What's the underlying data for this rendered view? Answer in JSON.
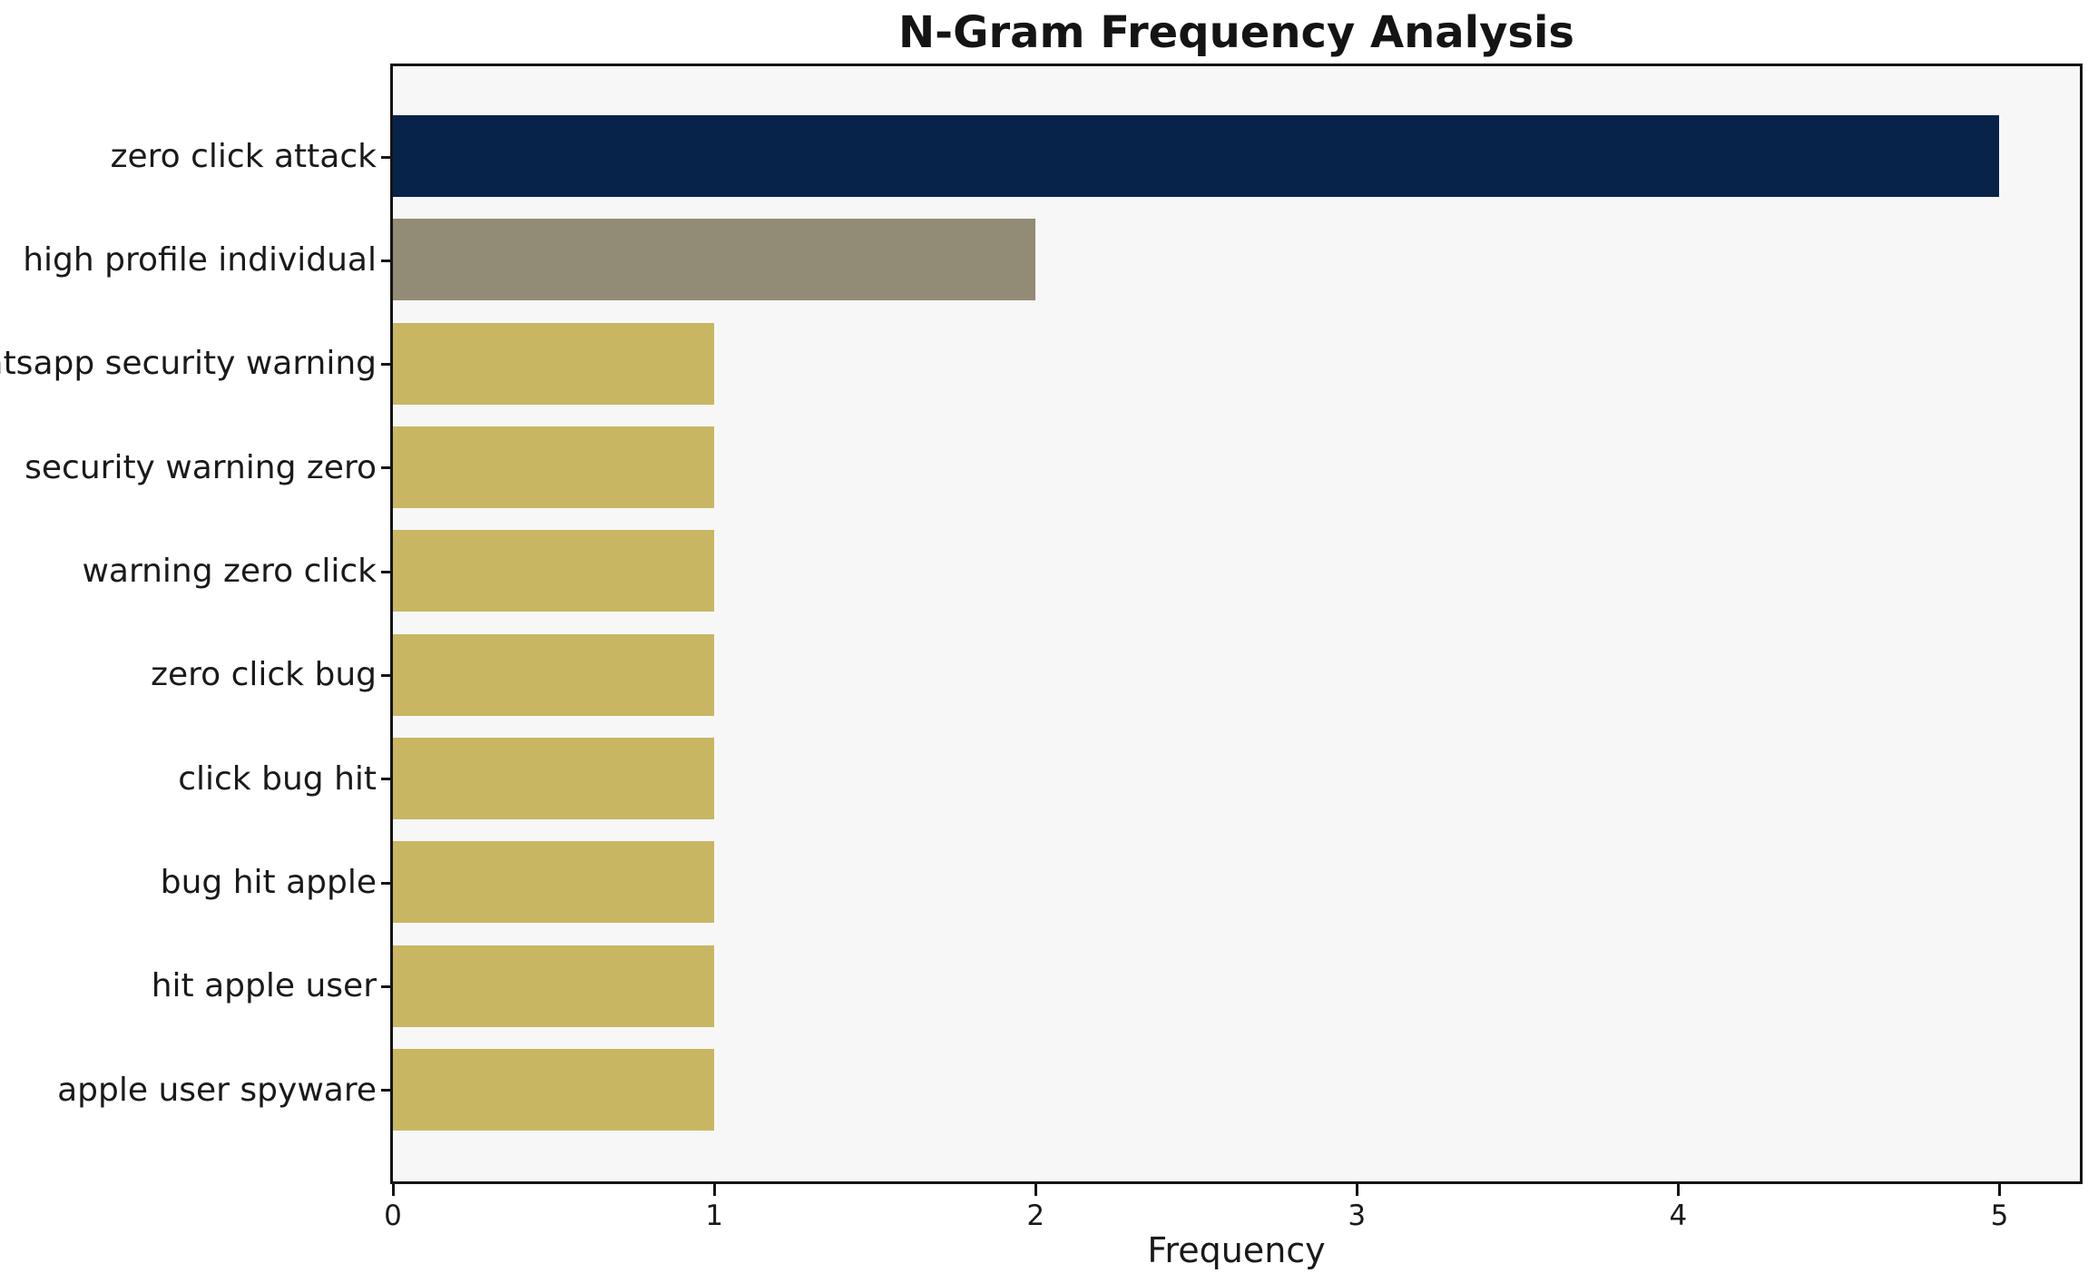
{
  "chart_data": {
    "type": "bar",
    "orientation": "horizontal",
    "title": "N-Gram Frequency Analysis",
    "xlabel": "Frequency",
    "ylabel": "",
    "categories": [
      "zero click attack",
      "high profile individual",
      "whatsapp security warning",
      "security warning zero",
      "warning zero click",
      "zero click bug",
      "click bug hit",
      "bug hit apple",
      "hit apple user",
      "apple user spyware"
    ],
    "values": [
      5,
      2,
      1,
      1,
      1,
      1,
      1,
      1,
      1,
      1
    ],
    "bar_colors": [
      "#07234a",
      "#928b75",
      "#c8b662",
      "#c8b662",
      "#c8b662",
      "#c8b662",
      "#c8b662",
      "#c8b662",
      "#c8b662",
      "#c8b662"
    ],
    "xticks": [
      0,
      1,
      2,
      3,
      4,
      5
    ],
    "xlim": [
      0,
      5.25
    ],
    "grid": false,
    "legend": null,
    "plot_background": "#f7f7f7",
    "figure_background": "#ffffff",
    "spine_color": "#141414"
  }
}
